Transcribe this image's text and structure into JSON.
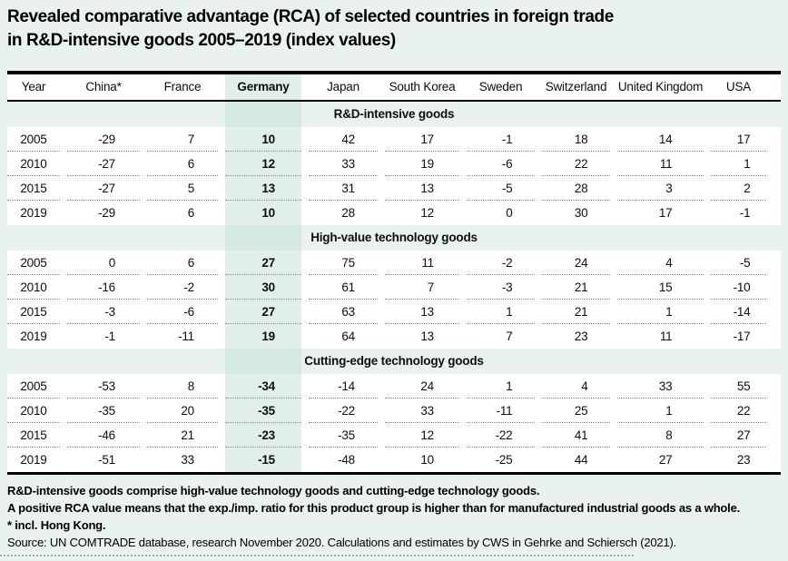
{
  "title": {
    "line1": "Revealed comparative advantage (RCA) of selected countries in foreign trade",
    "line2": "in R&D-intensive goods 2005–2019 (index values)"
  },
  "chart_data": {
    "type": "table",
    "title": "Revealed comparative advantage (RCA) of selected countries in foreign trade in R&D-intensive goods 2005–2019 (index values)",
    "columns": [
      "Year",
      "China*",
      "France",
      "Germany",
      "Japan",
      "South Korea",
      "Sweden",
      "Switzerland",
      "United Kingdom",
      "USA"
    ],
    "highlight_column": "Germany",
    "sections": [
      {
        "label": "R&D-intensive goods",
        "rows": [
          {
            "year": "2005",
            "values": [
              "-29",
              "7",
              "10",
              "42",
              "17",
              "-1",
              "18",
              "14",
              "17"
            ]
          },
          {
            "year": "2010",
            "values": [
              "-27",
              "6",
              "12",
              "33",
              "19",
              "-6",
              "22",
              "11",
              "1"
            ]
          },
          {
            "year": "2015",
            "values": [
              "-27",
              "5",
              "13",
              "31",
              "13",
              "-5",
              "28",
              "3",
              "2"
            ]
          },
          {
            "year": "2019",
            "values": [
              "-29",
              "6",
              "10",
              "28",
              "12",
              "0",
              "30",
              "17",
              "-1"
            ]
          }
        ]
      },
      {
        "label": "High-value technology goods",
        "rows": [
          {
            "year": "2005",
            "values": [
              "0",
              "6",
              "27",
              "75",
              "11",
              "-2",
              "24",
              "4",
              "-5"
            ]
          },
          {
            "year": "2010",
            "values": [
              "-16",
              "-2",
              "30",
              "61",
              "7",
              "-3",
              "21",
              "15",
              "-10"
            ]
          },
          {
            "year": "2015",
            "values": [
              "-3",
              "-6",
              "27",
              "63",
              "13",
              "1",
              "21",
              "1",
              "-14"
            ]
          },
          {
            "year": "2019",
            "values": [
              "-1",
              "-11",
              "19",
              "64",
              "13",
              "7",
              "23",
              "11",
              "-17"
            ]
          }
        ]
      },
      {
        "label": "Cutting-edge technology goods",
        "rows": [
          {
            "year": "2005",
            "values": [
              "-53",
              "8",
              "-34",
              "-14",
              "24",
              "1",
              "4",
              "33",
              "55"
            ]
          },
          {
            "year": "2010",
            "values": [
              "-35",
              "20",
              "-35",
              "-22",
              "33",
              "-11",
              "25",
              "1",
              "22"
            ]
          },
          {
            "year": "2015",
            "values": [
              "-46",
              "21",
              "-23",
              "-35",
              "12",
              "-22",
              "41",
              "8",
              "27"
            ]
          },
          {
            "year": "2019",
            "values": [
              "-51",
              "33",
              "-15",
              "-48",
              "10",
              "-25",
              "44",
              "27",
              "23"
            ]
          }
        ]
      }
    ]
  },
  "notes": [
    "R&D-intensive goods comprise high-value technology goods and cutting-edge technology goods.",
    "A positive RCA value means that the exp./imp. ratio for this product group is higher than for manufactured industrial goods as a whole.",
    "* incl. Hong Kong."
  ],
  "source": "Source: UN COMTRADE database, research November 2020. Calculations and estimates by CWS in Gehrke and Schiersch (2021).",
  "colors": {
    "page_background": "#e9f2f0",
    "row_background": "#ffffff",
    "highlight_column_tint": "#e2eeeb",
    "section_band_highlight_tint": "#d6e8e4",
    "rule_color": "#000000",
    "dotted_separator": "#7d8d8a"
  }
}
